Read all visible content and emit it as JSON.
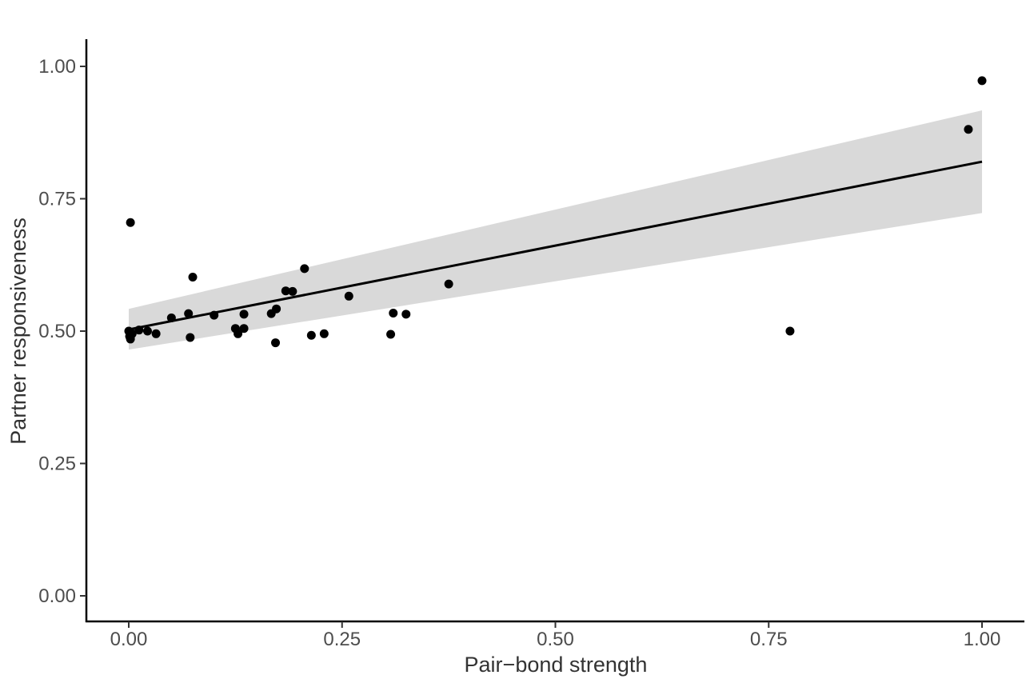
{
  "chart_data": {
    "type": "scatter",
    "title": "",
    "xlabel": "Pair−bond strength",
    "ylabel": "Partner responsiveness",
    "xlim": [
      -0.05,
      1.05
    ],
    "ylim": [
      -0.05,
      1.05
    ],
    "x_ticks": [
      0.0,
      0.25,
      0.5,
      0.75,
      1.0
    ],
    "x_tick_labels": [
      "0.00",
      "0.25",
      "0.50",
      "0.75",
      "1.00"
    ],
    "y_ticks": [
      0.0,
      0.25,
      0.5,
      0.75,
      1.0
    ],
    "y_tick_labels": [
      "0.00",
      "0.25",
      "0.50",
      "0.75",
      "1.00"
    ],
    "grid": false,
    "points": [
      {
        "x": 0.0,
        "y": 0.5
      },
      {
        "x": 0.001,
        "y": 0.49
      },
      {
        "x": 0.002,
        "y": 0.485
      },
      {
        "x": 0.004,
        "y": 0.495
      },
      {
        "x": 0.002,
        "y": 0.705
      },
      {
        "x": 0.012,
        "y": 0.502
      },
      {
        "x": 0.022,
        "y": 0.5
      },
      {
        "x": 0.032,
        "y": 0.495
      },
      {
        "x": 0.05,
        "y": 0.525
      },
      {
        "x": 0.07,
        "y": 0.533
      },
      {
        "x": 0.072,
        "y": 0.488
      },
      {
        "x": 0.075,
        "y": 0.602
      },
      {
        "x": 0.1,
        "y": 0.53
      },
      {
        "x": 0.125,
        "y": 0.505
      },
      {
        "x": 0.128,
        "y": 0.495
      },
      {
        "x": 0.135,
        "y": 0.532
      },
      {
        "x": 0.135,
        "y": 0.505
      },
      {
        "x": 0.167,
        "y": 0.533
      },
      {
        "x": 0.172,
        "y": 0.478
      },
      {
        "x": 0.173,
        "y": 0.542
      },
      {
        "x": 0.184,
        "y": 0.576
      },
      {
        "x": 0.192,
        "y": 0.575
      },
      {
        "x": 0.206,
        "y": 0.618
      },
      {
        "x": 0.214,
        "y": 0.492
      },
      {
        "x": 0.229,
        "y": 0.495
      },
      {
        "x": 0.258,
        "y": 0.566
      },
      {
        "x": 0.307,
        "y": 0.494
      },
      {
        "x": 0.31,
        "y": 0.534
      },
      {
        "x": 0.325,
        "y": 0.532
      },
      {
        "x": 0.375,
        "y": 0.589
      },
      {
        "x": 0.775,
        "y": 0.5
      },
      {
        "x": 0.984,
        "y": 0.881
      },
      {
        "x": 1.0,
        "y": 0.973
      }
    ],
    "fit_line": {
      "x": [
        0.0,
        1.0
      ],
      "y": [
        0.503,
        0.82
      ]
    },
    "confidence_band": {
      "x": [
        0.0,
        1.0
      ],
      "lower": [
        0.465,
        0.723
      ],
      "upper": [
        0.542,
        0.917
      ]
    },
    "colors": {
      "points": "#000000",
      "line": "#000000",
      "band": "#d9d9d9",
      "axis": "#000000"
    }
  }
}
